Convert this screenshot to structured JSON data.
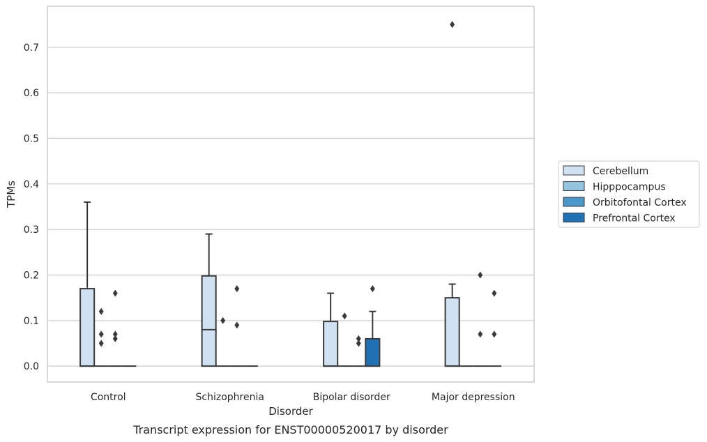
{
  "chart_data": {
    "type": "box",
    "title": "",
    "caption": "Transcript expression for ENST00000520017 by disorder",
    "xlabel": "Disorder",
    "ylabel": "TPMs",
    "ylim": [
      -0.035,
      0.79
    ],
    "yticks": [
      "0.0",
      "0.1",
      "0.2",
      "0.3",
      "0.4",
      "0.5",
      "0.6",
      "0.7"
    ],
    "ytick_values": [
      0.0,
      0.1,
      0.2,
      0.3,
      0.4,
      0.5,
      0.6,
      0.7
    ],
    "grid": true,
    "legend_position": "right",
    "categories": [
      "Control",
      "Schizophrenia",
      "Bipolar disorder",
      "Major depression"
    ],
    "series": [
      {
        "name": "Cerebellum",
        "color": "#d0e1f2",
        "boxes": [
          {
            "q1": 0.0,
            "median": 0.0,
            "q3": 0.17,
            "whisker_low": 0.0,
            "whisker_high": 0.36,
            "outliers": []
          },
          {
            "q1": 0.0,
            "median": 0.08,
            "q3": 0.198,
            "whisker_low": 0.0,
            "whisker_high": 0.29,
            "outliers": []
          },
          {
            "q1": 0.0,
            "median": 0.0,
            "q3": 0.098,
            "whisker_low": 0.0,
            "whisker_high": 0.16,
            "outliers": []
          },
          {
            "q1": 0.0,
            "median": 0.0,
            "q3": 0.15,
            "whisker_low": 0.0,
            "whisker_high": 0.18,
            "outliers": [
              0.75
            ]
          }
        ]
      },
      {
        "name": "Hipppocampus",
        "color": "#94c4df",
        "boxes": [
          {
            "q1": 0.0,
            "median": 0.0,
            "q3": 0.0,
            "whisker_low": 0.0,
            "whisker_high": 0.0,
            "outliers": [
              0.12,
              0.07,
              0.05
            ]
          },
          {
            "q1": 0.0,
            "median": 0.0,
            "q3": 0.0,
            "whisker_low": 0.0,
            "whisker_high": 0.0,
            "outliers": [
              0.1
            ]
          },
          {
            "q1": 0.0,
            "median": 0.0,
            "q3": 0.0,
            "whisker_low": 0.0,
            "whisker_high": 0.0,
            "outliers": [
              0.11
            ]
          },
          {
            "q1": 0.0,
            "median": 0.0,
            "q3": 0.0,
            "whisker_low": 0.0,
            "whisker_high": 0.0,
            "outliers": []
          }
        ]
      },
      {
        "name": "Orbitofontal Cortex",
        "color": "#4a98c9",
        "boxes": [
          {
            "q1": 0.0,
            "median": 0.0,
            "q3": 0.0,
            "whisker_low": 0.0,
            "whisker_high": 0.0,
            "outliers": [
              0.16,
              0.07,
              0.06
            ]
          },
          {
            "q1": 0.0,
            "median": 0.0,
            "q3": 0.0,
            "whisker_low": 0.0,
            "whisker_high": 0.0,
            "outliers": [
              0.17,
              0.09
            ]
          },
          {
            "q1": 0.0,
            "median": 0.0,
            "q3": 0.0,
            "whisker_low": 0.0,
            "whisker_high": 0.0,
            "outliers": [
              0.06,
              0.05
            ]
          },
          {
            "q1": 0.0,
            "median": 0.0,
            "q3": 0.0,
            "whisker_low": 0.0,
            "whisker_high": 0.0,
            "outliers": [
              0.2,
              0.07
            ]
          }
        ]
      },
      {
        "name": "Prefrontal Cortex",
        "color": "#2171b5",
        "boxes": [
          {
            "q1": 0.0,
            "median": 0.0,
            "q3": 0.0,
            "whisker_low": 0.0,
            "whisker_high": 0.0,
            "outliers": []
          },
          {
            "q1": 0.0,
            "median": 0.0,
            "q3": 0.0,
            "whisker_low": 0.0,
            "whisker_high": 0.0,
            "outliers": []
          },
          {
            "q1": 0.0,
            "median": 0.0,
            "q3": 0.06,
            "whisker_low": 0.0,
            "whisker_high": 0.12,
            "outliers": [
              0.17
            ]
          },
          {
            "q1": 0.0,
            "median": 0.0,
            "q3": 0.0,
            "whisker_low": 0.0,
            "whisker_high": 0.0,
            "outliers": [
              0.16,
              0.07
            ]
          }
        ]
      }
    ]
  }
}
